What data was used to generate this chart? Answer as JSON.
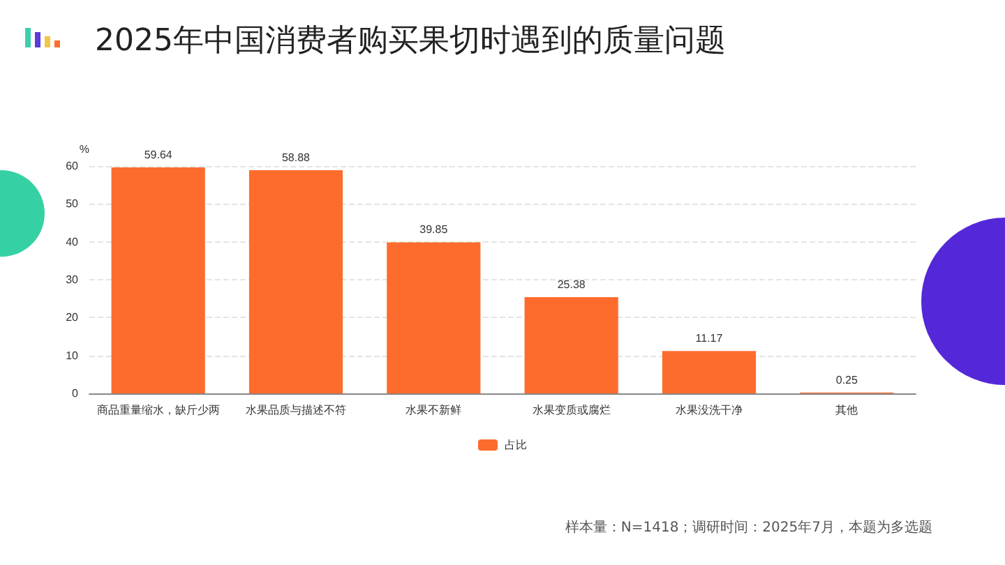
{
  "chart_data": {
    "type": "bar",
    "title": "2025年中国消费者购买果切时遇到的质量问题",
    "ylabel": "%",
    "categories": [
      "商品重量缩水，缺斤少两",
      "水果品质与描述不符",
      "水果不新鲜",
      "水果变质或腐烂",
      "水果没洗干净",
      "其他"
    ],
    "series": [
      {
        "name": "占比",
        "color": "#fd6c2c",
        "values": [
          59.64,
          58.88,
          39.85,
          25.38,
          11.17,
          0.25
        ]
      }
    ],
    "ylim": [
      0,
      60
    ],
    "yticks": [
      0,
      10,
      20,
      30,
      40,
      50,
      60
    ],
    "grid": "y",
    "legend": "bottom",
    "data_labels": true,
    "annotations": [
      "样本量：N=1418；调研时间：2025年7月，本题为多选题"
    ]
  }
}
